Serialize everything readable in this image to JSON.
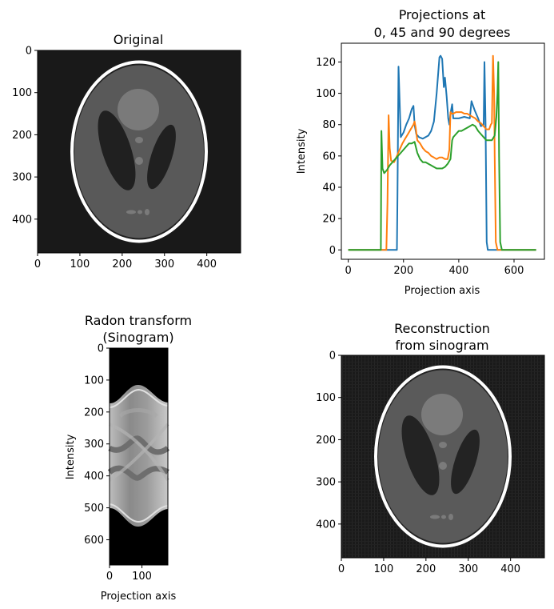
{
  "chart_data": [
    {
      "type": "image",
      "title": "Original",
      "xlabel": "",
      "ylabel": "",
      "xlim": [
        0,
        480
      ],
      "ylim": [
        480,
        0
      ],
      "xticks": [
        0,
        100,
        200,
        300,
        400
      ],
      "yticks": [
        0,
        100,
        200,
        300,
        400
      ],
      "content": "Shepp-Logan phantom",
      "colormap": "gray"
    },
    {
      "type": "line",
      "title": [
        "Projections at",
        "0, 45 and 90 degrees"
      ],
      "xlabel": "Projection axis",
      "ylabel": "Intensity",
      "xlim": [
        -25,
        710
      ],
      "ylim": [
        -6,
        132
      ],
      "xticks": [
        0,
        200,
        400,
        600
      ],
      "yticks": [
        0,
        20,
        40,
        60,
        80,
        100,
        120
      ],
      "series": [
        {
          "color": "#1f77b4",
          "x": [
            0,
            176,
            178,
            182,
            186,
            190,
            200,
            210,
            220,
            230,
            236,
            240,
            246,
            256,
            270,
            290,
            300,
            310,
            320,
            330,
            334,
            340,
            346,
            350,
            356,
            362,
            366,
            370,
            376,
            380,
            400,
            420,
            440,
            446,
            452,
            458,
            470,
            480,
            490,
            493,
            495,
            497,
            501,
            505,
            680
          ],
          "y": [
            0,
            0,
            35,
            117,
            95,
            72,
            75,
            80,
            84,
            90,
            92,
            80,
            74,
            72,
            71,
            73,
            76,
            82,
            100,
            123,
            124,
            122,
            104,
            110,
            98,
            84,
            80,
            87,
            93,
            84,
            84,
            85,
            84,
            95,
            92,
            89,
            84,
            79,
            80,
            120,
            100,
            80,
            5,
            0,
            0
          ]
        },
        {
          "color": "#ff7f0e",
          "x": [
            0,
            130,
            138,
            142,
            146,
            150,
            155,
            166,
            176,
            186,
            196,
            206,
            216,
            226,
            236,
            240,
            244,
            250,
            260,
            270,
            280,
            290,
            300,
            310,
            320,
            330,
            340,
            350,
            360,
            366,
            370,
            374,
            380,
            390,
            400,
            410,
            420,
            430,
            440,
            450,
            460,
            470,
            480,
            490,
            500,
            510,
            516,
            520,
            524,
            528,
            530,
            534,
            540,
            680
          ],
          "y": [
            0,
            0,
            0,
            30,
            86,
            65,
            57,
            56,
            60,
            64,
            68,
            71,
            74,
            77,
            80,
            82,
            78,
            70,
            68,
            65,
            63,
            62,
            60,
            59,
            58,
            59,
            59,
            58,
            58,
            64,
            88,
            87,
            87,
            88,
            88,
            88,
            87,
            87,
            86,
            85,
            84,
            82,
            81,
            79,
            77,
            77,
            80,
            81,
            124,
            100,
            60,
            5,
            0,
            0
          ]
        },
        {
          "color": "#2ca02c",
          "x": [
            0,
            114,
            118,
            120,
            124,
            130,
            140,
            150,
            160,
            170,
            180,
            190,
            200,
            210,
            220,
            230,
            240,
            250,
            260,
            270,
            280,
            290,
            300,
            310,
            320,
            330,
            340,
            350,
            360,
            370,
            376,
            380,
            390,
            400,
            410,
            420,
            430,
            440,
            450,
            460,
            470,
            480,
            490,
            500,
            510,
            520,
            530,
            536,
            540,
            543,
            546,
            550,
            556,
            680
          ],
          "y": [
            0,
            0,
            0,
            76,
            52,
            49,
            51,
            54,
            56,
            58,
            60,
            62,
            64,
            66,
            68,
            68,
            69,
            62,
            58,
            56,
            56,
            55,
            54,
            53,
            52,
            52,
            52,
            53,
            55,
            58,
            70,
            72,
            74,
            76,
            76,
            77,
            78,
            79,
            80,
            79,
            76,
            74,
            72,
            70,
            70,
            70,
            73,
            85,
            100,
            120,
            60,
            5,
            0,
            0
          ]
        }
      ]
    },
    {
      "type": "image",
      "title": [
        "Radon transform",
        "(Sinogram)"
      ],
      "xlabel": "Projection axis",
      "ylabel": "Intensity",
      "xlim": [
        0,
        180
      ],
      "ylim": [
        679,
        0
      ],
      "xticks": [
        0,
        100
      ],
      "yticks": [
        0,
        100,
        200,
        300,
        400,
        500,
        600
      ],
      "content": "sinogram of the phantom",
      "colormap": "gray"
    },
    {
      "type": "image",
      "title": [
        "Reconstruction",
        "from sinogram"
      ],
      "xlabel": "",
      "ylabel": "",
      "xlim": [
        0,
        480
      ],
      "ylim": [
        480,
        0
      ],
      "xticks": [
        0,
        100,
        200,
        300,
        400
      ],
      "yticks": [
        0,
        100,
        200,
        300,
        400
      ],
      "content": "filtered back-projection reconstruction of the phantom",
      "colormap": "gray"
    }
  ]
}
